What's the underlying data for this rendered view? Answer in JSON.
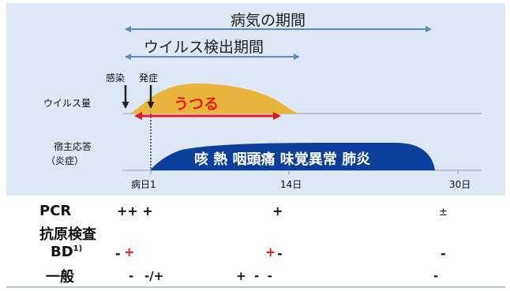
{
  "diagram": {
    "illness_period": "病気の期間",
    "virus_detection_period": "ウイルス検出期間",
    "infection_label": "感染",
    "onset_label": "発症",
    "viral_load_label": "ウイルス量",
    "contagious_label": "うつる",
    "host_response_label": "宿主応答",
    "inflammation_label": "（炎症）",
    "symptoms_label": "咳 熱 咽頭痛 味覚異常 肺炎",
    "colors": {
      "panel_bg": "#dde8f4",
      "viral_area": "#e9b53a",
      "host_area": "#0b3f9c",
      "arrow_blue": "#5f86c4",
      "contagious_arrow": "#e8191c",
      "axis_line": "#999999"
    }
  },
  "axis": {
    "tick_day1": "病日1",
    "tick_day14": "14日",
    "tick_day30": "30日"
  },
  "tests": {
    "pcr": {
      "label": "PCR",
      "day1": "++ +",
      "day14": "+",
      "day30": "±"
    },
    "antigen": {
      "label": "抗原検査"
    },
    "bd": {
      "label": "BD",
      "superscript": "1)",
      "early_black": "-",
      "early_red": "+",
      "mid_red": "+",
      "mid_black": "-",
      "late": "-"
    },
    "general": {
      "label": "一般",
      "early": "-",
      "early2": "-/+",
      "mid": "+  -  -",
      "late": "-"
    }
  }
}
